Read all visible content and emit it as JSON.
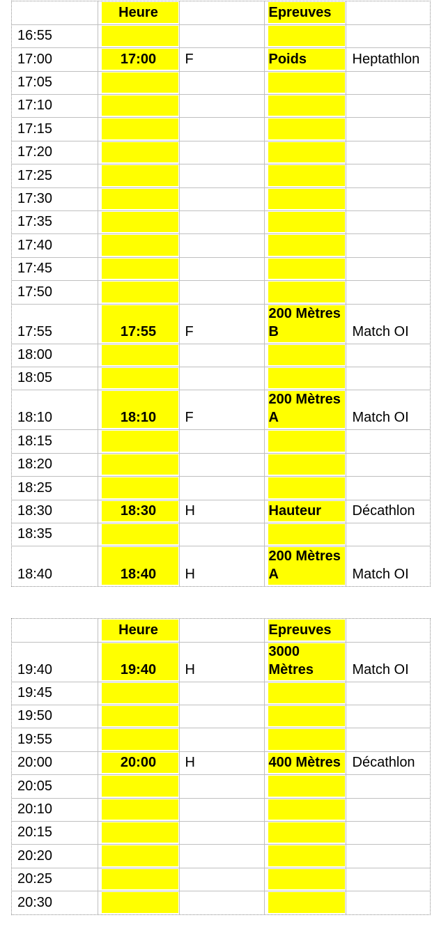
{
  "colors": {
    "highlight": "#FFFF00",
    "gridline": "#BFBFBF",
    "page_border_dotted": "#8A8A8A",
    "text": "#000000",
    "background": "#FFFFFF"
  },
  "tables": [
    {
      "name": "afternoon-session",
      "header": {
        "time": "",
        "heure": "Heure",
        "sex": "",
        "event": "Epreuves",
        "meet": ""
      },
      "rows": [
        {
          "time": "16:55",
          "heure": "",
          "sex": "",
          "event": "",
          "meet": ""
        },
        {
          "time": "17:00",
          "heure": "17:00",
          "sex": "F",
          "event": "Poids",
          "meet": "Heptathlon"
        },
        {
          "time": "17:05",
          "heure": "",
          "sex": "",
          "event": "",
          "meet": ""
        },
        {
          "time": "17:10",
          "heure": "",
          "sex": "",
          "event": "",
          "meet": ""
        },
        {
          "time": "17:15",
          "heure": "",
          "sex": "",
          "event": "",
          "meet": ""
        },
        {
          "time": "17:20",
          "heure": "",
          "sex": "",
          "event": "",
          "meet": ""
        },
        {
          "time": "17:25",
          "heure": "",
          "sex": "",
          "event": "",
          "meet": ""
        },
        {
          "time": "17:30",
          "heure": "",
          "sex": "",
          "event": "",
          "meet": ""
        },
        {
          "time": "17:35",
          "heure": "",
          "sex": "",
          "event": "",
          "meet": ""
        },
        {
          "time": "17:40",
          "heure": "",
          "sex": "",
          "event": "",
          "meet": ""
        },
        {
          "time": "17:45",
          "heure": "",
          "sex": "",
          "event": "",
          "meet": ""
        },
        {
          "time": "17:50",
          "heure": "",
          "sex": "",
          "event": "",
          "meet": ""
        },
        {
          "time": "17:55",
          "heure": "17:55",
          "sex": "F",
          "event": [
            "200 Mètres",
            "B"
          ],
          "meet": "Match OI",
          "tall": true
        },
        {
          "time": "18:00",
          "heure": "",
          "sex": "",
          "event": "",
          "meet": ""
        },
        {
          "time": "18:05",
          "heure": "",
          "sex": "",
          "event": "",
          "meet": ""
        },
        {
          "time": "18:10",
          "heure": "18:10",
          "sex": "F",
          "event": [
            "200 Mètres",
            "A"
          ],
          "meet": "Match OI",
          "tall": true
        },
        {
          "time": "18:15",
          "heure": "",
          "sex": "",
          "event": "",
          "meet": ""
        },
        {
          "time": "18:20",
          "heure": "",
          "sex": "",
          "event": "",
          "meet": ""
        },
        {
          "time": "18:25",
          "heure": "",
          "sex": "",
          "event": "",
          "meet": ""
        },
        {
          "time": "18:30",
          "heure": "18:30",
          "sex": "H",
          "event": "Hauteur",
          "meet": "Décathlon"
        },
        {
          "time": "18:35",
          "heure": "",
          "sex": "",
          "event": "",
          "meet": ""
        },
        {
          "time": "18:40",
          "heure": "18:40",
          "sex": "H",
          "event": [
            "200 Mètres",
            "A"
          ],
          "meet": "Match OI",
          "tall": true
        }
      ]
    },
    {
      "name": "evening-session",
      "header": {
        "time": "",
        "heure": "Heure",
        "sex": "",
        "event": "Epreuves",
        "meet": ""
      },
      "rows": [
        {
          "time": "19:40",
          "heure": "19:40",
          "sex": "H",
          "event": [
            "3000",
            "Mètres"
          ],
          "meet": "Match OI",
          "tall": true
        },
        {
          "time": "19:45",
          "heure": "",
          "sex": "",
          "event": "",
          "meet": ""
        },
        {
          "time": "19:50",
          "heure": "",
          "sex": "",
          "event": "",
          "meet": ""
        },
        {
          "time": "19:55",
          "heure": "",
          "sex": "",
          "event": "",
          "meet": ""
        },
        {
          "time": "20:00",
          "heure": "20:00",
          "sex": "H",
          "event": "400 Mètres",
          "meet": "Décathlon"
        },
        {
          "time": "20:05",
          "heure": "",
          "sex": "",
          "event": "",
          "meet": ""
        },
        {
          "time": "20:10",
          "heure": "",
          "sex": "",
          "event": "",
          "meet": ""
        },
        {
          "time": "20:15",
          "heure": "",
          "sex": "",
          "event": "",
          "meet": ""
        },
        {
          "time": "20:20",
          "heure": "",
          "sex": "",
          "event": "",
          "meet": ""
        },
        {
          "time": "20:25",
          "heure": "",
          "sex": "",
          "event": "",
          "meet": ""
        },
        {
          "time": "20:30",
          "heure": "",
          "sex": "",
          "event": "",
          "meet": ""
        }
      ]
    }
  ]
}
